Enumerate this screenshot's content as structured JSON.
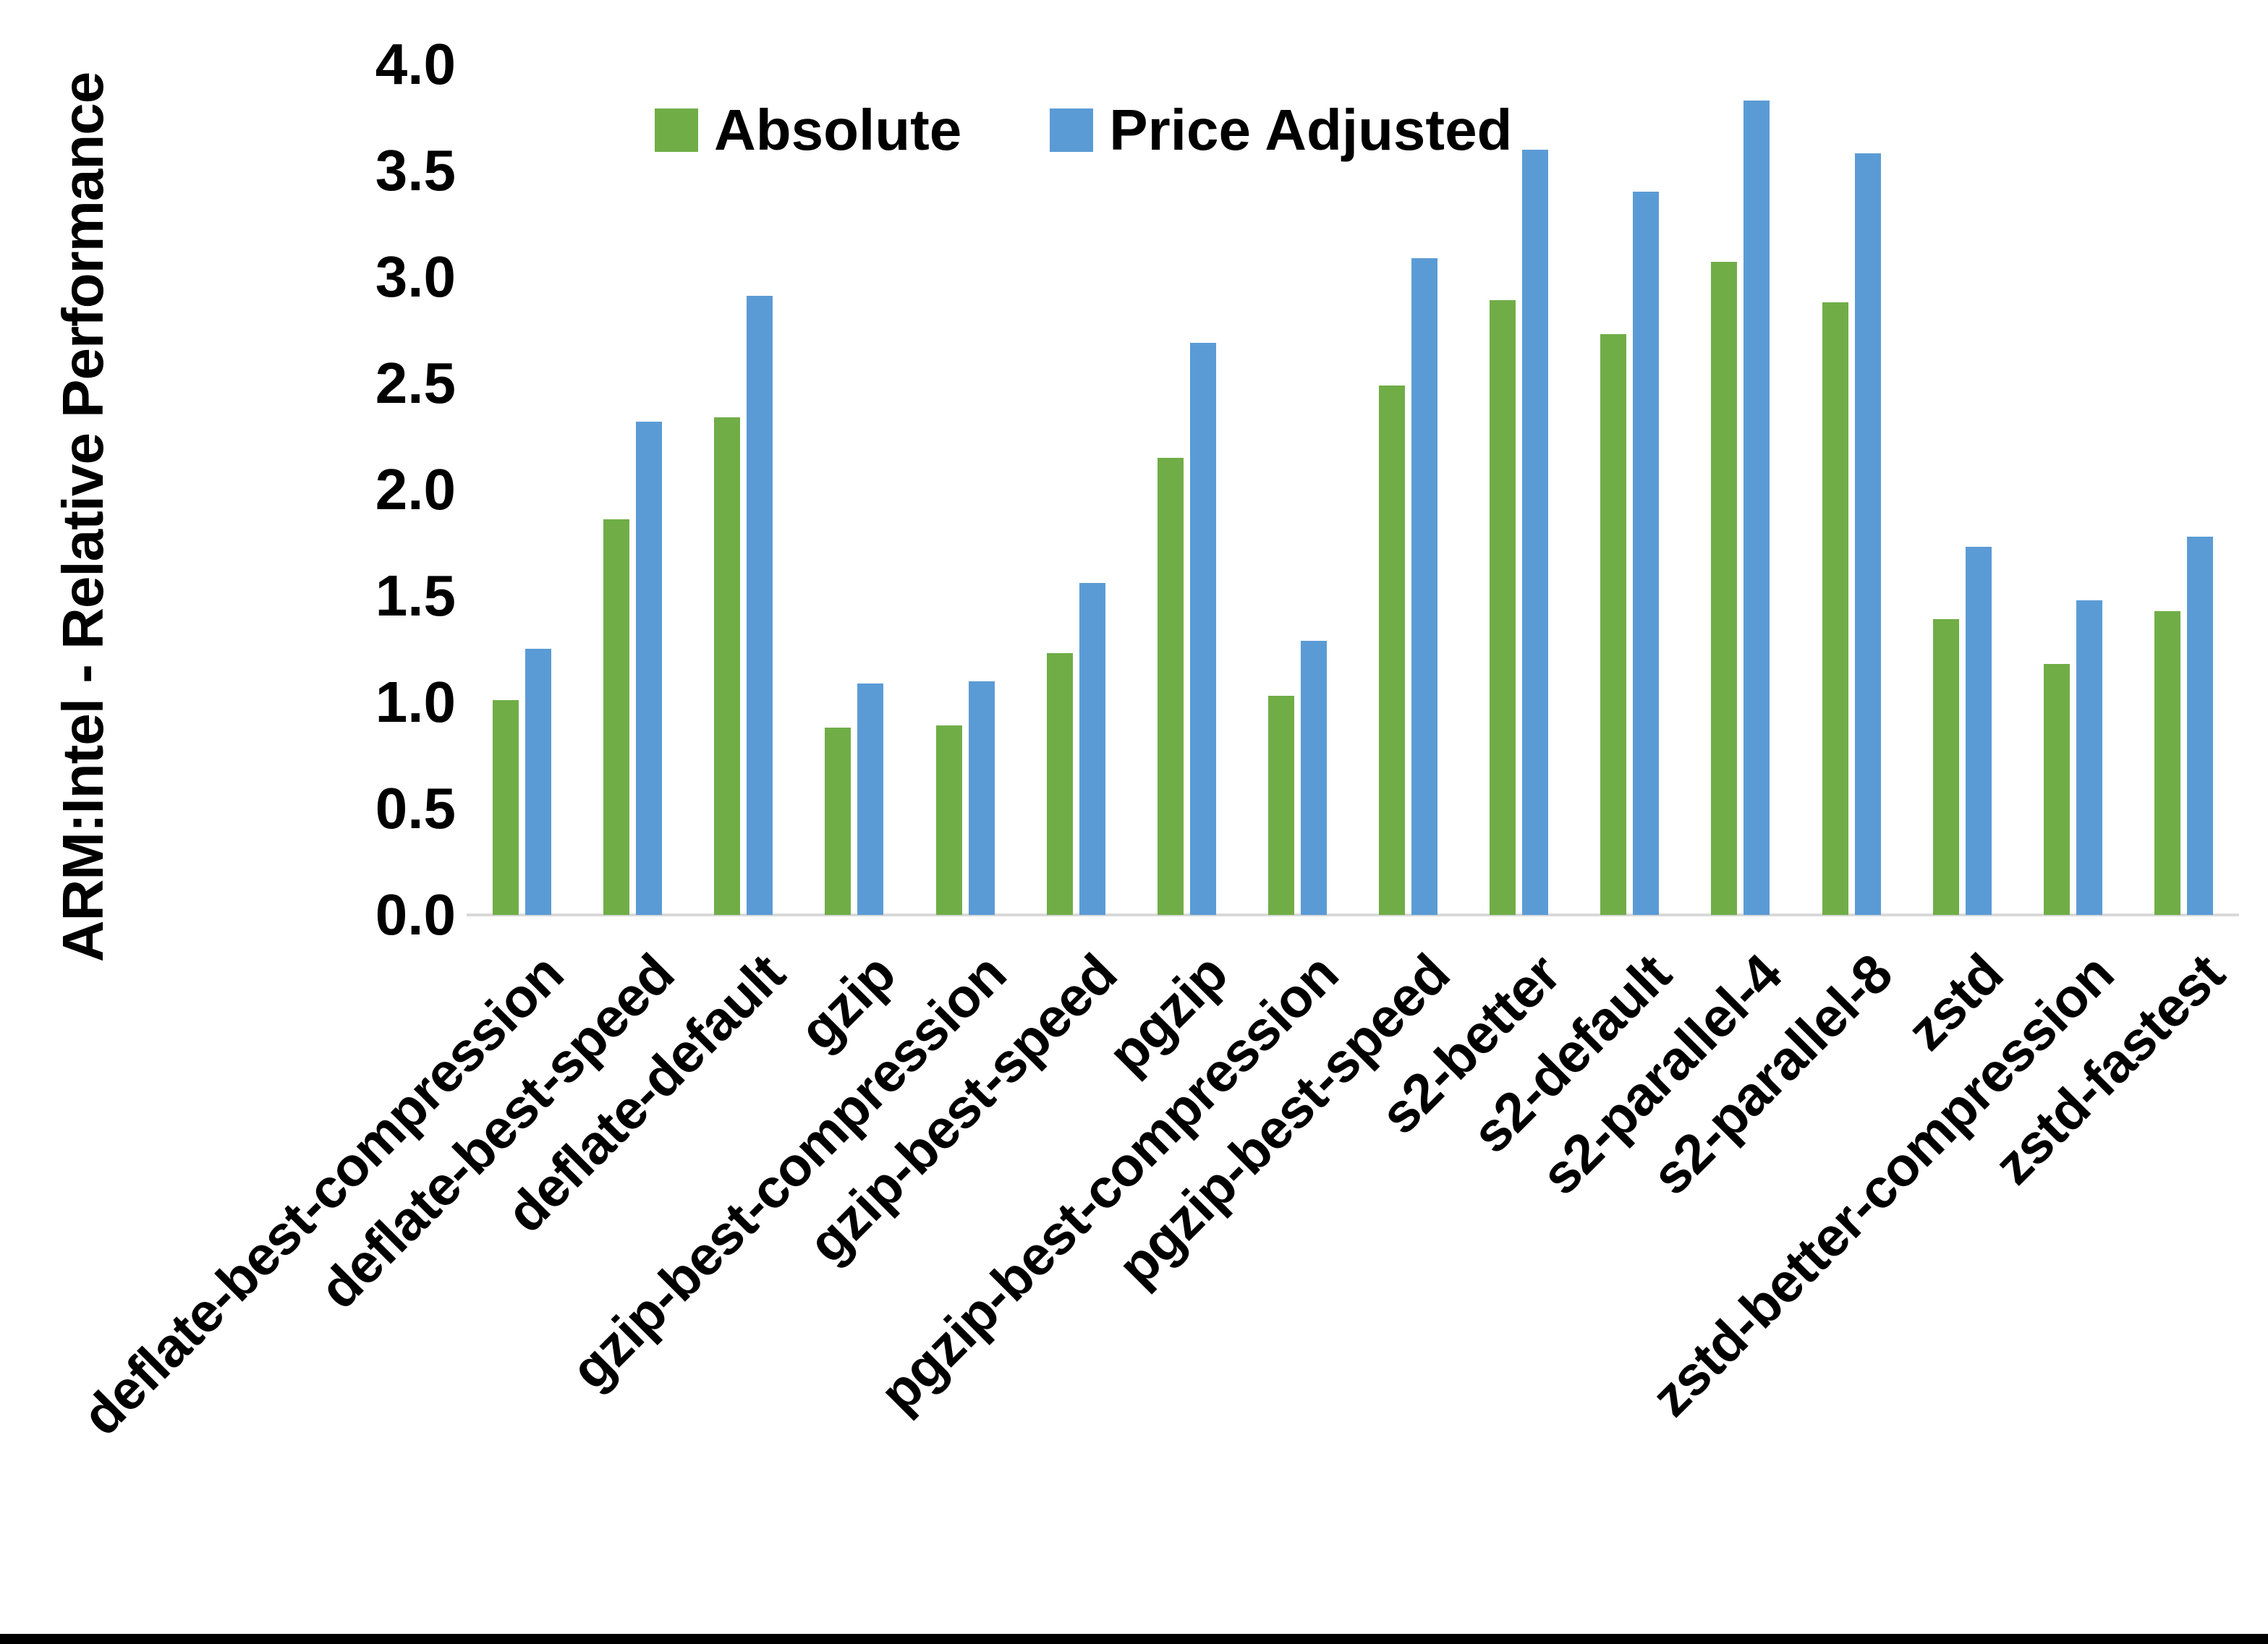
{
  "chart_data": {
    "type": "bar",
    "title": "",
    "xlabel": "",
    "ylabel": "ARM:Intel - Relative Performance",
    "ylim": [
      0.0,
      4.0
    ],
    "ytick_step": 0.5,
    "ytick_labels": [
      "0.0",
      "0.5",
      "1.0",
      "1.5",
      "2.0",
      "2.5",
      "3.0",
      "3.5",
      "4.0"
    ],
    "grid": false,
    "legend_position": "top-center",
    "x_label_rotation_deg": 45,
    "categories": [
      "deflate-best-compression",
      "deflate-best-speed",
      "deflate-default",
      "gzip",
      "gzip-best-compression",
      "gzip-best-speed",
      "pgzip",
      "pgzip-best-compression",
      "pgzip-best-speed",
      "s2-better",
      "s2-default",
      "s2-parallel-4",
      "s2-parallel-8",
      "zstd",
      "zstd-better-compression",
      "zstd-fastest"
    ],
    "series": [
      {
        "name": "Absolute",
        "color": "#70AD47",
        "values": [
          1.01,
          1.86,
          2.34,
          0.88,
          0.89,
          1.23,
          2.15,
          1.03,
          2.49,
          2.89,
          2.73,
          3.07,
          2.88,
          1.39,
          1.18,
          1.43
        ]
      },
      {
        "name": "Price Adjusted",
        "color": "#5B9BD5",
        "values": [
          1.25,
          2.32,
          2.91,
          1.09,
          1.1,
          1.56,
          2.69,
          1.29,
          3.09,
          3.6,
          3.4,
          3.83,
          3.58,
          1.73,
          1.48,
          1.78
        ]
      }
    ],
    "colors": {
      "axis_line": "#D9D9D9",
      "text": "#000000",
      "background": "#FFFFFF",
      "bottom_border": "#000000"
    }
  }
}
